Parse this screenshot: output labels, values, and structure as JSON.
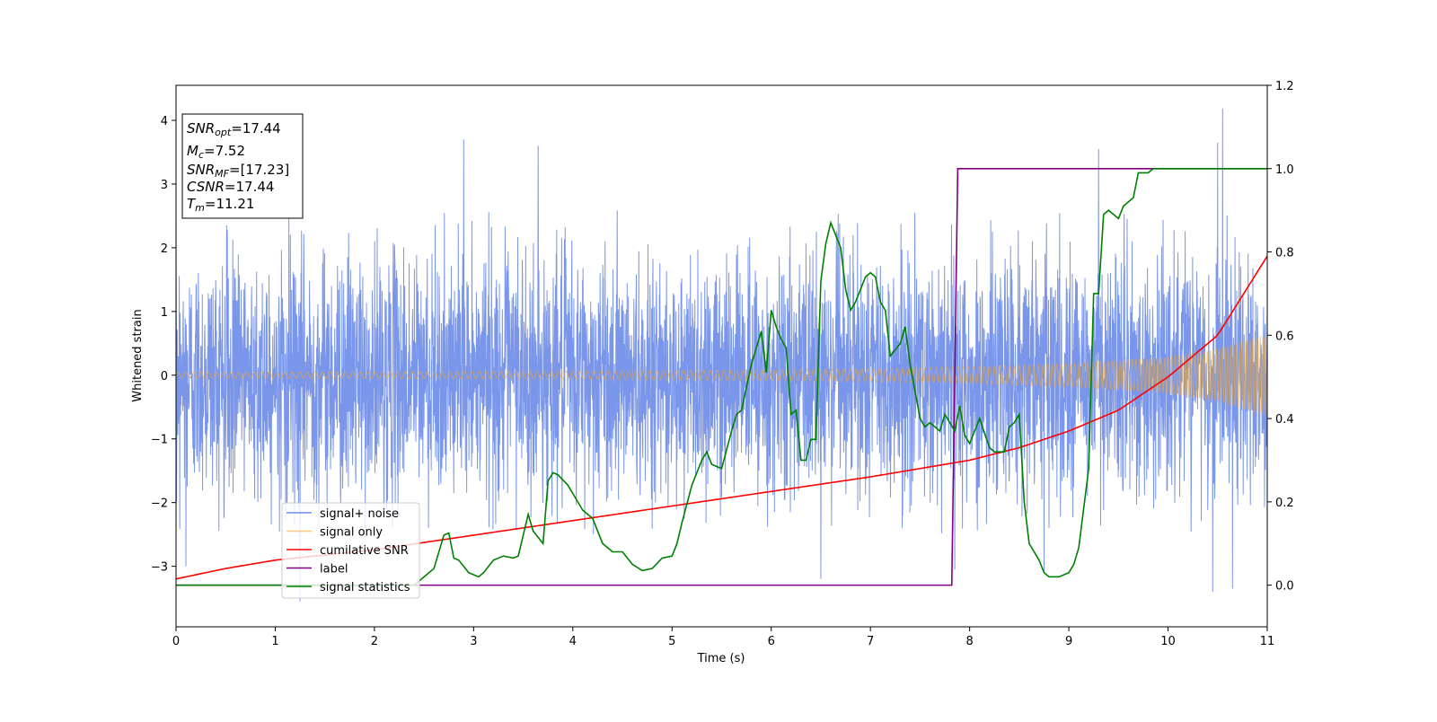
{
  "chart_data": {
    "type": "line",
    "title": "",
    "xlabel": "Time (s)",
    "ylabel": "Whitened strain",
    "y2label": "",
    "xlim": [
      0,
      11
    ],
    "ylim": [
      -3.95,
      4.55
    ],
    "y2lim": [
      -0.1,
      1.2
    ],
    "xticks": [
      0,
      1,
      2,
      3,
      4,
      5,
      6,
      7,
      8,
      9,
      10,
      11
    ],
    "yticks": [
      -3,
      -2,
      -1,
      0,
      1,
      2,
      3,
      4
    ],
    "y2ticks": [
      0.0,
      0.2,
      0.4,
      0.6,
      0.8,
      1.0,
      1.2
    ],
    "grid": false,
    "legend_position": "lower-left",
    "info_box": {
      "position": "top-left",
      "lines": [
        {
          "base": "SNR",
          "sub": "opt",
          "rest": "=17.44"
        },
        {
          "base": "M",
          "sub": "c",
          "rest": "=7.52"
        },
        {
          "base": "SNR",
          "sub": "MF",
          "rest": "=[17.23]"
        },
        {
          "base": "CSNR",
          "sub": "",
          "rest": "=17.44"
        },
        {
          "base": "T",
          "sub": "m",
          "rest": "=11.21"
        }
      ]
    },
    "series": [
      {
        "name": "signal+ noise",
        "axis": "left",
        "color": "#4169e1",
        "description_values": "whitened noisy strain, roughly unit-variance noise with peaks up to ~4.2",
        "noise_std": 1.0,
        "spikes": [
          [
            2.9,
            3.7
          ],
          [
            3.65,
            3.6
          ],
          [
            9.3,
            3.55
          ],
          [
            10.5,
            3.65
          ],
          [
            10.55,
            4.18
          ],
          [
            1.25,
            -3.55
          ],
          [
            6.5,
            -3.2
          ],
          [
            10.45,
            -3.4
          ],
          [
            10.65,
            -3.35
          ],
          [
            0.1,
            -3.0
          ],
          [
            8.75,
            -3.1
          ],
          [
            7.85,
            -3.05
          ]
        ]
      },
      {
        "name": "signal only",
        "axis": "left",
        "color": "#f5a623",
        "amplitude": {
          "x": [
            0,
            2,
            4,
            6,
            7,
            8,
            9,
            10,
            10.5,
            11
          ],
          "y": [
            0.05,
            0.055,
            0.065,
            0.085,
            0.1,
            0.13,
            0.18,
            0.29,
            0.42,
            0.65
          ]
        }
      },
      {
        "name": "cumilative SNR",
        "axis": "right",
        "color": "#ff0000",
        "x": [
          0,
          0.5,
          1,
          2,
          3,
          4,
          5,
          6,
          7,
          8,
          8.5,
          9,
          9.5,
          10,
          10.5,
          11
        ],
        "y": [
          0.015,
          0.04,
          0.06,
          0.085,
          0.12,
          0.155,
          0.19,
          0.225,
          0.26,
          0.3,
          0.33,
          0.37,
          0.42,
          0.5,
          0.6,
          0.79
        ]
      },
      {
        "name": "label",
        "axis": "right",
        "color": "#800080",
        "x": [
          0,
          7.82,
          7.88,
          11
        ],
        "y": [
          0,
          0,
          1.0,
          1.0
        ]
      },
      {
        "name": "signal statistics",
        "axis": "right",
        "color": "#008000",
        "x": [
          0,
          2.4,
          2.5,
          2.6,
          2.7,
          2.75,
          2.8,
          2.85,
          2.95,
          3.05,
          3.1,
          3.2,
          3.3,
          3.4,
          3.45,
          3.55,
          3.6,
          3.7,
          3.75,
          3.8,
          3.85,
          3.95,
          4.05,
          4.1,
          4.2,
          4.3,
          4.4,
          4.5,
          4.6,
          4.7,
          4.8,
          4.9,
          5.0,
          5.05,
          5.1,
          5.2,
          5.3,
          5.35,
          5.4,
          5.5,
          5.6,
          5.65,
          5.7,
          5.8,
          5.9,
          5.95,
          6.0,
          6.05,
          6.1,
          6.15,
          6.2,
          6.25,
          6.3,
          6.35,
          6.4,
          6.45,
          6.5,
          6.55,
          6.6,
          6.65,
          6.7,
          6.75,
          6.8,
          6.85,
          6.9,
          6.95,
          7.0,
          7.05,
          7.1,
          7.15,
          7.2,
          7.3,
          7.35,
          7.4,
          7.5,
          7.55,
          7.6,
          7.7,
          7.75,
          7.85,
          7.9,
          7.95,
          8.0,
          8.05,
          8.1,
          8.2,
          8.25,
          8.35,
          8.4,
          8.45,
          8.5,
          8.55,
          8.6,
          8.7,
          8.75,
          8.8,
          8.9,
          9.0,
          9.05,
          9.1,
          9.2,
          9.25,
          9.3,
          9.35,
          9.4,
          9.45,
          9.5,
          9.55,
          9.6,
          9.65,
          9.7,
          9.8,
          9.85,
          9.9,
          10.0,
          10.05,
          10.1,
          10.2,
          10.3,
          10.5,
          11
        ],
        "y": [
          0,
          0.0,
          0.02,
          0.04,
          0.12,
          0.125,
          0.065,
          0.06,
          0.03,
          0.02,
          0.03,
          0.06,
          0.07,
          0.065,
          0.07,
          0.17,
          0.13,
          0.1,
          0.25,
          0.27,
          0.265,
          0.24,
          0.2,
          0.18,
          0.16,
          0.1,
          0.08,
          0.08,
          0.05,
          0.035,
          0.04,
          0.065,
          0.07,
          0.1,
          0.15,
          0.24,
          0.3,
          0.32,
          0.29,
          0.28,
          0.37,
          0.41,
          0.42,
          0.53,
          0.61,
          0.51,
          0.66,
          0.62,
          0.59,
          0.57,
          0.41,
          0.42,
          0.3,
          0.3,
          0.35,
          0.35,
          0.73,
          0.82,
          0.87,
          0.84,
          0.81,
          0.71,
          0.66,
          0.68,
          0.71,
          0.74,
          0.75,
          0.74,
          0.68,
          0.66,
          0.55,
          0.58,
          0.62,
          0.53,
          0.4,
          0.38,
          0.39,
          0.37,
          0.41,
          0.37,
          0.43,
          0.36,
          0.34,
          0.37,
          0.4,
          0.33,
          0.32,
          0.32,
          0.38,
          0.39,
          0.41,
          0.2,
          0.1,
          0.06,
          0.03,
          0.02,
          0.02,
          0.03,
          0.05,
          0.09,
          0.28,
          0.7,
          0.7,
          0.89,
          0.9,
          0.89,
          0.88,
          0.91,
          0.92,
          0.93,
          0.99,
          0.99,
          1.0,
          1.0,
          1.0,
          1.0,
          1.0,
          1.0,
          1.0,
          1.0,
          1.0
        ]
      }
    ]
  }
}
